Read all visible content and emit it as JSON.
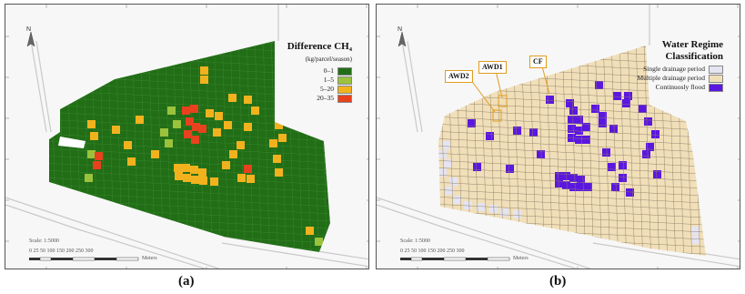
{
  "panel_a": {
    "caption": "(a)",
    "legend_title": "Difference CH₄",
    "legend_subtitle": "(kg/parcel/season)",
    "legend_items": [
      {
        "label": "0–1",
        "color": "#226e17"
      },
      {
        "label": "1–5",
        "color": "#9bc23c"
      },
      {
        "label": "5–20",
        "color": "#f1b21e"
      },
      {
        "label": "20–35",
        "color": "#e8411e"
      }
    ],
    "scale_text": "Scale: 1:5000",
    "scale_ticks": "0  25 50    100    150    200    250    300",
    "scale_unit": "Meters",
    "north": "N"
  },
  "panel_b": {
    "caption": "(b)",
    "legend_title": "Water Regime",
    "legend_title2": "Classification",
    "legend_items": [
      {
        "label": "Single drainage period",
        "color": "#e4e4f2"
      },
      {
        "label": "Multiple drainage period",
        "color": "#f1dfb9"
      },
      {
        "label": "Continuosly flood",
        "color": "#5b16e0"
      }
    ],
    "callouts": [
      "AWD2",
      "AWD1",
      "CF"
    ],
    "scale_text": "Scale: 1:5000",
    "scale_ticks": "0  25 50    100    150    200    250    300",
    "scale_unit": "Meters",
    "north": "N"
  },
  "colors": {
    "green": "#226e17",
    "lightgreen": "#9bc23c",
    "orange": "#f1b21e",
    "red": "#e8411e",
    "beige": "#f1dfb9",
    "lavender": "#e4e4f2",
    "purple": "#5b16e0",
    "accent_box": "#e19b1f"
  }
}
